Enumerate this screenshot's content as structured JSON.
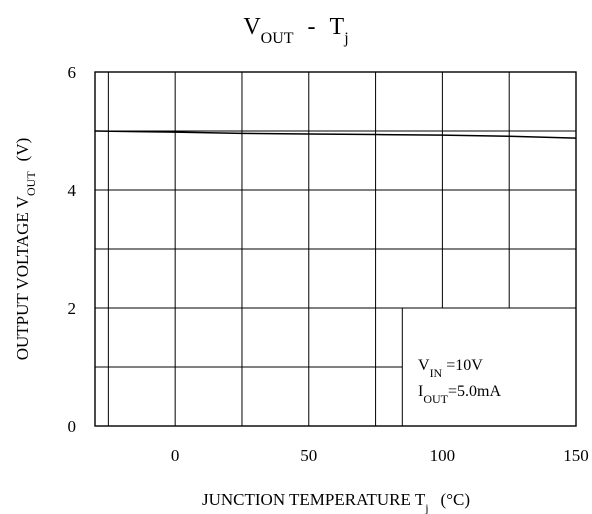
{
  "chart_data": {
    "type": "line",
    "title": {
      "main": "V",
      "sub": "OUT",
      "sep": "-",
      "main2": "T",
      "sub2": "j"
    },
    "xlabel": {
      "main": "JUNCTION TEMPERATURE T",
      "sub": "j",
      "unit": "(°C)"
    },
    "ylabel": {
      "main": "OUTPUT VOLTAGE V",
      "sub": "OUT",
      "unit": "(V)"
    },
    "xlim": [
      -30,
      150
    ],
    "ylim": [
      0,
      6
    ],
    "x_ticks": [
      0,
      50,
      100,
      150
    ],
    "y_ticks": [
      0,
      2,
      4,
      6
    ],
    "x_gridlines": [
      -25,
      0,
      25,
      50,
      75,
      100,
      125
    ],
    "y_gridlines": [
      1,
      2,
      3,
      4,
      5
    ],
    "series": [
      {
        "x": [
          -30,
          0,
          25,
          50,
          75,
          100,
          125,
          150
        ],
        "y": [
          5.0,
          4.98,
          4.96,
          4.95,
          4.94,
          4.93,
          4.91,
          4.88
        ]
      }
    ],
    "annotation": [
      {
        "main": "V",
        "sub": "IN",
        "rest": " =10V"
      },
      {
        "main": "I",
        "sub": "OUT",
        "rest": "=5.0mA"
      }
    ],
    "annotation_box_x": [
      85,
      150
    ],
    "annotation_box_y": [
      0,
      2
    ]
  }
}
